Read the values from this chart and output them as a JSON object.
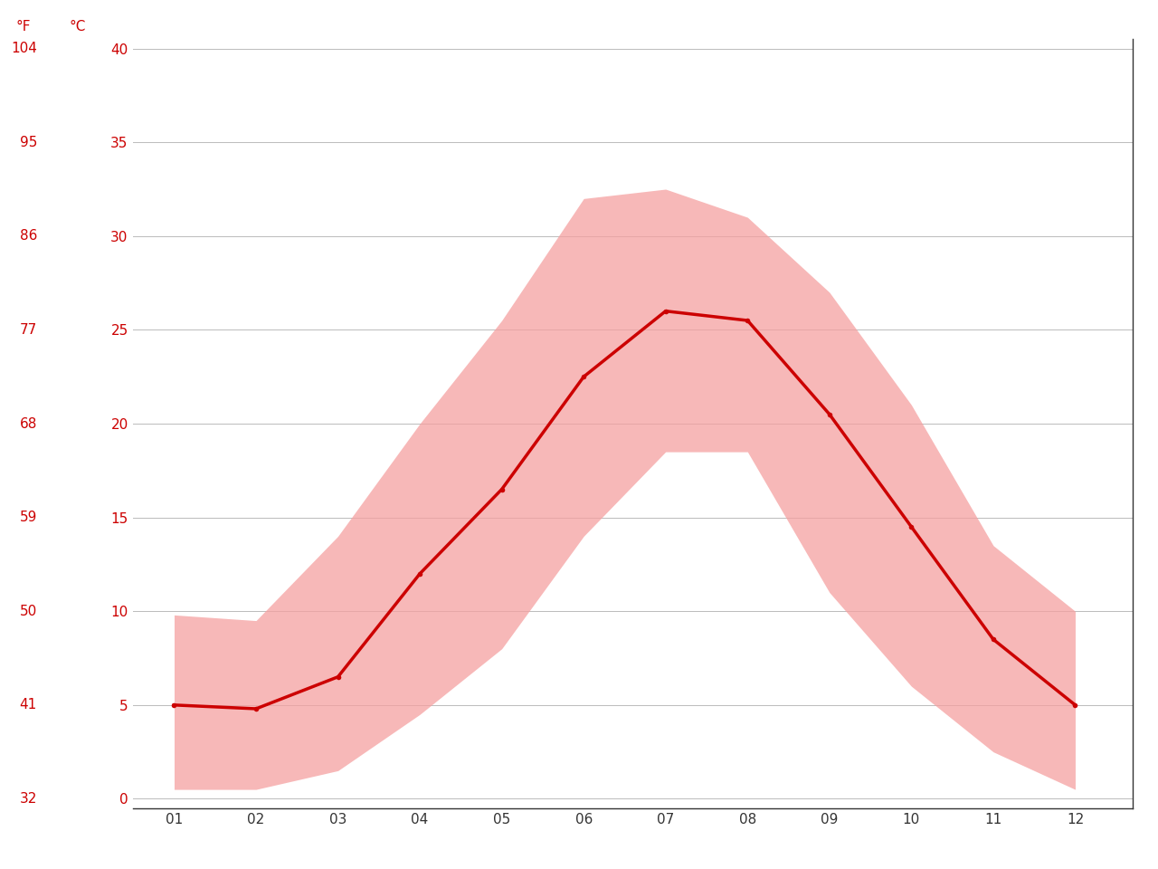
{
  "months": [
    1,
    2,
    3,
    4,
    5,
    6,
    7,
    8,
    9,
    10,
    11,
    12
  ],
  "month_labels": [
    "01",
    "02",
    "03",
    "04",
    "05",
    "06",
    "07",
    "08",
    "09",
    "10",
    "11",
    "12"
  ],
  "mean_temp": [
    5.0,
    4.8,
    6.5,
    12.0,
    16.5,
    22.5,
    26.0,
    25.5,
    20.5,
    14.5,
    8.5,
    5.0
  ],
  "max_temp": [
    9.8,
    9.5,
    14.0,
    20.0,
    25.5,
    32.0,
    32.5,
    31.0,
    27.0,
    21.0,
    13.5,
    10.0
  ],
  "min_temp": [
    0.5,
    0.5,
    1.5,
    4.5,
    8.0,
    14.0,
    18.5,
    18.5,
    11.0,
    6.0,
    2.5,
    0.5
  ],
  "y_ticks_c": [
    0,
    5,
    10,
    15,
    20,
    25,
    30,
    35,
    40
  ],
  "y_ticks_f": [
    32,
    41,
    50,
    59,
    68,
    77,
    86,
    95,
    104
  ],
  "ylim_c": [
    0,
    40
  ],
  "xlim": [
    0.5,
    12.7
  ],
  "bg_color": "#ffffff",
  "line_color": "#cc0000",
  "fill_color": "#f5a0a0",
  "fill_alpha": 0.75,
  "grid_color": "#bbbbbb",
  "label_color": "#cc0000",
  "tick_color": "#333333",
  "axis_label_F": "°F",
  "axis_label_C": "°C",
  "right_spine_color": "#333333"
}
